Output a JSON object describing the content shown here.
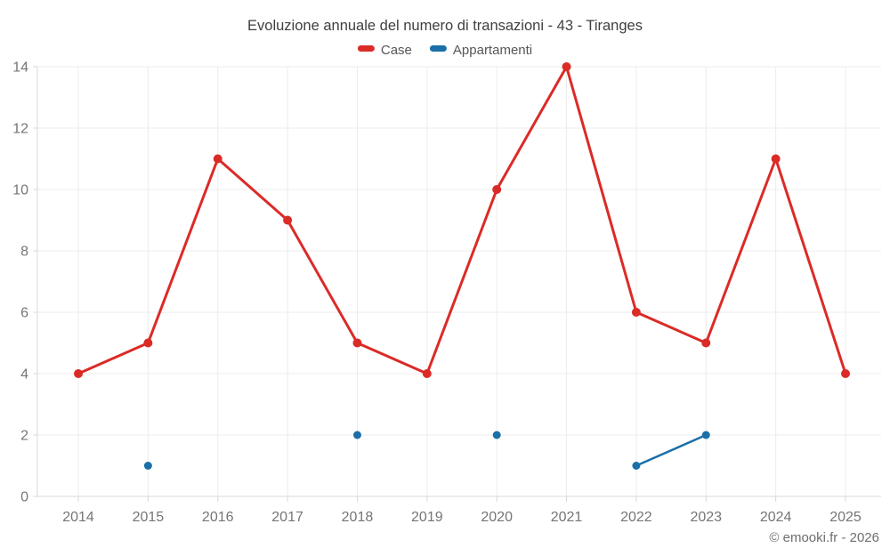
{
  "header": {
    "title": "Evoluzione annuale del numero di transazioni - 43 - Tiranges"
  },
  "legend": {
    "items": [
      {
        "label": "Case",
        "color": "#db2b27"
      },
      {
        "label": "Appartamenti",
        "color": "#1a6fa8"
      }
    ]
  },
  "footer": {
    "copyright": "© emooki.fr - 2026"
  },
  "chart_data": {
    "type": "line",
    "title": "Evoluzione annuale del numero di transazioni - 43 - Tiranges",
    "xlabel": "",
    "ylabel": "",
    "x": [
      2014,
      2015,
      2016,
      2017,
      2018,
      2019,
      2020,
      2021,
      2022,
      2023,
      2024,
      2025
    ],
    "series": [
      {
        "name": "Case",
        "color": "#db2b27",
        "line_width": 3,
        "marker_radius": 5,
        "values": [
          4,
          5,
          11,
          9,
          5,
          4,
          10,
          14,
          6,
          5,
          11,
          4
        ]
      },
      {
        "name": "Appartamenti",
        "color": "#1a6fa8",
        "line_width": 2.5,
        "marker_radius": 4.5,
        "values": [
          null,
          1,
          null,
          null,
          2,
          null,
          2,
          null,
          1,
          2,
          null,
          null
        ]
      }
    ],
    "ylim": [
      0,
      14
    ],
    "yticks": [
      0,
      2,
      4,
      6,
      8,
      10,
      12,
      14
    ],
    "grid": true,
    "legend_position": "top"
  },
  "colors": {
    "background": "#ffffff",
    "grid": "#ececec",
    "axis": "#d8d8d8",
    "tick_label": "#757575",
    "title": "#3f3f3f",
    "legend_text": "#565656"
  }
}
